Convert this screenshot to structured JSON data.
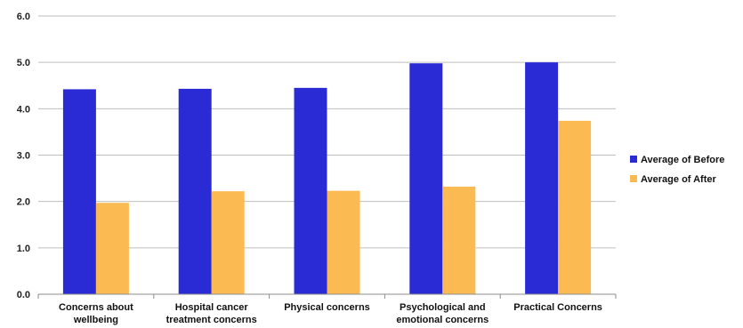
{
  "chart_data": {
    "type": "bar",
    "categories": [
      [
        "Concerns about",
        "wellbeing"
      ],
      [
        "Hospital cancer",
        "treatment concerns"
      ],
      [
        "Physical concerns"
      ],
      [
        "Psychological and",
        "emotional concerns"
      ],
      [
        "Practical Concerns"
      ]
    ],
    "series": [
      {
        "name": "Average of Before",
        "color": "#2b2bd6",
        "values": [
          4.42,
          4.43,
          4.45,
          4.98,
          5.0
        ]
      },
      {
        "name": "Average of After",
        "color": "#fbbb52",
        "values": [
          1.97,
          2.22,
          2.23,
          2.32,
          3.74
        ]
      }
    ],
    "ylim": [
      0,
      6
    ],
    "yticks": [
      "0.0",
      "1.0",
      "2.0",
      "3.0",
      "4.0",
      "5.0",
      "6.0"
    ],
    "grid": true,
    "legend": "right"
  }
}
